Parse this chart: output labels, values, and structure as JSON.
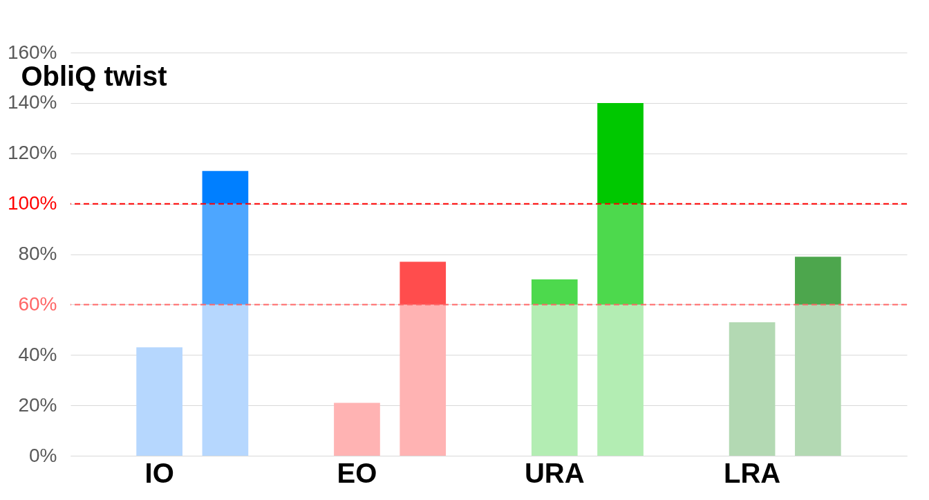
{
  "chart_data": {
    "type": "bar",
    "title": "ObliQ twist",
    "stacked": true,
    "categories": [
      "IO",
      null,
      "EO",
      null,
      "URA",
      null,
      "LRA",
      null
    ],
    "series": [
      {
        "colors": [
          "#b6d7fe",
          "#b6d7fe",
          "#ffb3b3",
          "#ffb3b3",
          "#b3edb3",
          "#b3edb3",
          "#b3d9b3",
          "#b3d9b3"
        ],
        "values": [
          43,
          60,
          21,
          60,
          60,
          60,
          53,
          60
        ]
      },
      {
        "colors": [
          null,
          "#4da6ff",
          null,
          "#ff4d4d",
          "#4dd94d",
          "#4dd94d",
          null,
          "#4da64d"
        ],
        "values": [
          null,
          40,
          null,
          17,
          10,
          40,
          null,
          19
        ]
      },
      {
        "colors": [
          null,
          "#007fff",
          null,
          null,
          null,
          "#00c800",
          null,
          null
        ],
        "values": [
          null,
          13,
          null,
          null,
          null,
          40,
          null,
          null
        ]
      }
    ],
    "ylim": [
      0,
      160
    ],
    "yticks": [
      {
        "value": 0,
        "label": "0%"
      },
      {
        "value": 20,
        "label": "20%"
      },
      {
        "value": 40,
        "label": "40%"
      },
      {
        "value": 60,
        "label": "60%"
      },
      {
        "value": 80,
        "label": "80%"
      },
      {
        "value": 100,
        "label": "100%"
      },
      {
        "value": 120,
        "label": "120%"
      },
      {
        "value": 140,
        "label": "140%"
      },
      {
        "value": 160,
        "label": "160%"
      }
    ],
    "grid": "y",
    "ref_lines": [
      {
        "axis": "y",
        "value": 100,
        "color": "#ff0000",
        "line_style": "dashed"
      },
      {
        "axis": "y",
        "value": 60,
        "color": "#ff6666",
        "line_style": "dashed"
      }
    ]
  }
}
